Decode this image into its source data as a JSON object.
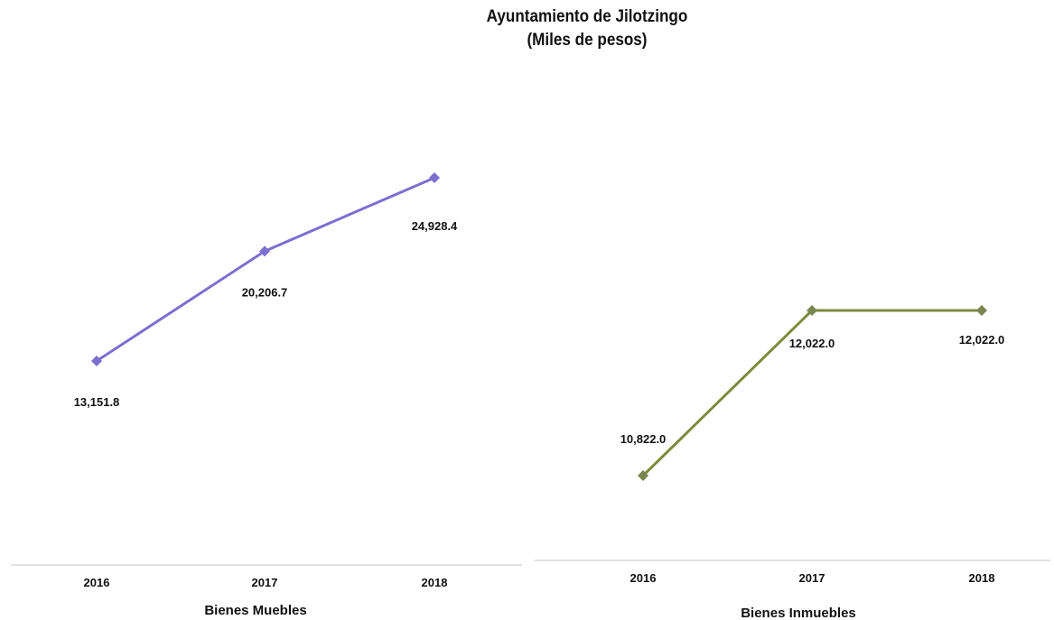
{
  "title": {
    "line1": "Ayuntamiento de Jilotzingo",
    "line2": "(Miles de pesos)"
  },
  "colors": {
    "muebles": "#7b6fd0",
    "inmuebles": "#7d8a3c",
    "inmuebles_marker": "#7a8650",
    "axis": "#d9d9d9"
  },
  "chart_data": [
    {
      "type": "line",
      "x": [
        "2016",
        "2017",
        "2018"
      ],
      "series": [
        {
          "name": "Bienes Muebles",
          "values": [
            13151.8,
            20206.7,
            24928.4
          ],
          "labels": [
            "13,151.8",
            "20,206.7",
            "24,928.4"
          ]
        }
      ],
      "xlabel": "Bienes Muebles",
      "ylabel": "",
      "grid": false,
      "legend": "none",
      "marker": "diamond"
    },
    {
      "type": "line",
      "x": [
        "2016",
        "2017",
        "2018"
      ],
      "series": [
        {
          "name": "Bienes Inmuebles",
          "values": [
            10822.0,
            12022.0,
            12022.0
          ],
          "labels": [
            "10,822.0",
            "12,022.0",
            "12,022.0"
          ]
        }
      ],
      "xlabel": "Bienes Inmuebles",
      "ylabel": "",
      "grid": false,
      "legend": "none",
      "marker": "diamond"
    }
  ]
}
